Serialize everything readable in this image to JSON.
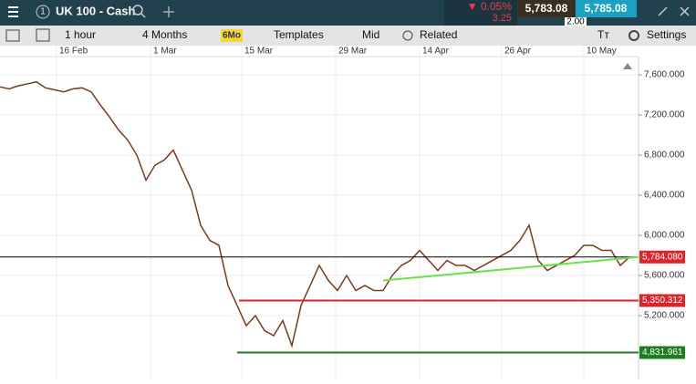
{
  "header": {
    "instrument_number": "1",
    "instrument": "UK 100 - Cash",
    "change_percent": "▼ 0.05%",
    "change_points": "3.25",
    "sell_price": "5,783.08",
    "buy_price": "5,785.08",
    "spread": "2.00"
  },
  "toolbar": {
    "interval": "1 hour",
    "range": "4 Months",
    "range_badge": "6Mo",
    "templates": "Templates",
    "price_type": "Mid",
    "related": "Related",
    "settings": "Settings"
  },
  "chart_data": {
    "type": "line",
    "date_labels": [
      "16 Feb",
      "1 Mar",
      "15 Mar",
      "29 Mar",
      "14 Apr",
      "26 Apr",
      "10 May"
    ],
    "values": [
      7480,
      7460,
      7490,
      7510,
      7530,
      7470,
      7450,
      7430,
      7460,
      7470,
      7430,
      7300,
      7180,
      7050,
      6950,
      6800,
      6550,
      6700,
      6750,
      6850,
      6650,
      6450,
      6100,
      5950,
      5900,
      5500,
      5300,
      5100,
      5200,
      5050,
      5000,
      5150,
      4900,
      5300,
      5500,
      5700,
      5550,
      5450,
      5600,
      5450,
      5500,
      5450,
      5450,
      5600,
      5700,
      5750,
      5850,
      5750,
      5650,
      5750,
      5700,
      5700,
      5650,
      5700,
      5750,
      5800,
      5850,
      5950,
      6100,
      5750,
      5650,
      5700,
      5750,
      5800,
      5900,
      5900,
      5850,
      5850,
      5700,
      5784
    ],
    "color": "#7a3b1c",
    "ylim": [
      4564,
      7782
    ],
    "yticks": [
      {
        "value": 5200,
        "label": "5,200.000"
      },
      {
        "value": 5600,
        "label": "5,600.000"
      },
      {
        "value": 6000,
        "label": "6,000.000"
      },
      {
        "value": 6400,
        "label": "6,400.000"
      },
      {
        "value": 6800,
        "label": "6,800.000"
      },
      {
        "value": 7200,
        "label": "7,200.000"
      },
      {
        "value": 7600,
        "label": "7,600.000"
      }
    ],
    "levels": [
      {
        "value": 5784.08,
        "label": "5,784.080",
        "color": "#000000",
        "box": "#d9262b"
      },
      {
        "value": 5350.312,
        "label": "5,350.312",
        "color": "#d9262b",
        "box": "#d9262b"
      },
      {
        "value": 4831.961,
        "label": "4,831.961",
        "color": "#1e7d1e",
        "box": "#1e7d1e"
      }
    ],
    "trendline": {
      "values": [
        5550,
        5784.08
      ],
      "color": "#66e34a"
    }
  }
}
